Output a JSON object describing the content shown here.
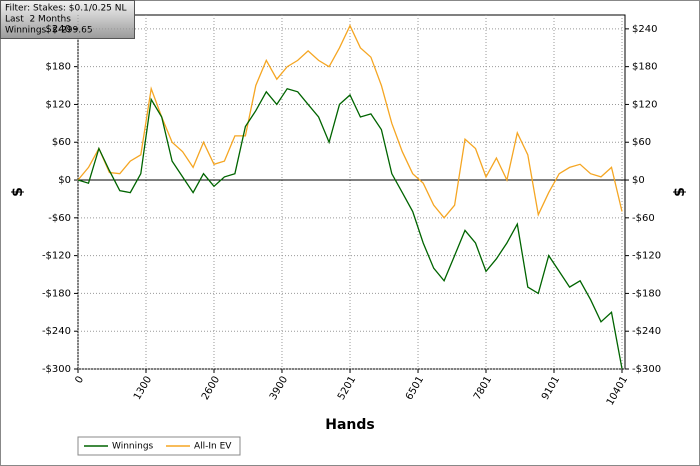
{
  "chart_data": {
    "type": "line",
    "annotations": [
      "Filter: Stakes: $0.1/0.25 NL",
      "Last  2 Months",
      "Winnings: $-299.65"
    ],
    "xlabel": "Hands",
    "ylabel": "$",
    "y2label": "$",
    "x": [
      0,
      200,
      400,
      600,
      800,
      1000,
      1200,
      1400,
      1600,
      1800,
      2000,
      2200,
      2400,
      2600,
      2800,
      3000,
      3200,
      3400,
      3600,
      3800,
      4000,
      4200,
      4400,
      4600,
      4800,
      5000,
      5200,
      5400,
      5600,
      5800,
      6000,
      6200,
      6400,
      6600,
      6800,
      7000,
      7200,
      7400,
      7600,
      7800,
      8000,
      8200,
      8400,
      8600,
      8800,
      9000,
      9200,
      9400,
      9600,
      9800,
      10000,
      10200,
      10401
    ],
    "series": [
      {
        "name": "Winnings",
        "color": "#006400",
        "values": [
          0,
          -5,
          50,
          15,
          -17,
          -20,
          10,
          128,
          100,
          30,
          5,
          -20,
          10,
          -10,
          5,
          10,
          85,
          110,
          140,
          120,
          145,
          140,
          120,
          100,
          60,
          120,
          135,
          100,
          105,
          80,
          10,
          -20,
          -50,
          -100,
          -140,
          -160,
          -120,
          -80,
          -100,
          -145,
          -125,
          -100,
          -70,
          -170,
          -180,
          -120,
          -145,
          -170,
          -160,
          -190,
          -225,
          -210,
          -299.65
        ]
      },
      {
        "name": "All-In EV",
        "color": "#f5a623",
        "values": [
          0,
          20,
          50,
          12,
          10,
          30,
          40,
          145,
          100,
          60,
          45,
          20,
          60,
          25,
          30,
          70,
          70,
          150,
          190,
          160,
          180,
          190,
          205,
          190,
          180,
          210,
          245,
          210,
          195,
          150,
          90,
          45,
          10,
          -5,
          -40,
          -60,
          -40,
          65,
          50,
          5,
          35,
          0,
          75,
          40,
          -55,
          -20,
          10,
          20,
          25,
          10,
          5,
          20,
          -50
        ]
      }
    ],
    "xlim": [
      0,
      10401
    ],
    "xticks": [
      0,
      1300,
      2600,
      3900,
      5201,
      6501,
      7801,
      9101,
      10401
    ],
    "ylim": [
      -300,
      262
    ],
    "yticks": [
      {
        "value": -300,
        "label": "-$300"
      },
      {
        "value": -240,
        "label": "-$240"
      },
      {
        "value": -180,
        "label": "-$180"
      },
      {
        "value": -120,
        "label": "-$120"
      },
      {
        "value": -60,
        "label": "-$60"
      },
      {
        "value": 0,
        "label": "$0"
      },
      {
        "value": 60,
        "label": "$60"
      },
      {
        "value": 120,
        "label": "$120"
      },
      {
        "value": 180,
        "label": "$180"
      },
      {
        "value": 240,
        "label": "$240"
      }
    ],
    "grid": true,
    "legend": "bottom-left"
  }
}
